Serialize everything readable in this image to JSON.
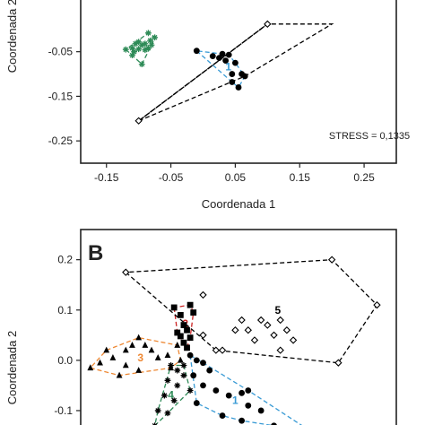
{
  "chart_data": [
    {
      "type": "scatter",
      "panel_label": "",
      "xlabel": "Coordenada 1",
      "ylabel": "Coordenada 2",
      "xlim": [
        -0.19,
        0.3
      ],
      "ylim": [
        -0.3,
        0.07
      ],
      "xticks": [
        "-0.15",
        "-0.05",
        "0.05",
        "0.15",
        "0.25"
      ],
      "yticks": [
        "-0.05",
        "-0.15",
        "-0.25"
      ],
      "annotation": "STRESS = 0,1335",
      "groups": [
        {
          "marker": "asterisk",
          "color": "#2e8b57",
          "hull_color": "#2e8b57",
          "points": [
            [
              -0.12,
              -0.045
            ],
            [
              -0.11,
              -0.042
            ],
            [
              -0.105,
              -0.032
            ],
            [
              -0.1,
              -0.028
            ],
            [
              -0.095,
              -0.035
            ],
            [
              -0.09,
              -0.032
            ],
            [
              -0.085,
              -0.042
            ],
            [
              -0.08,
              -0.035
            ],
            [
              -0.082,
              -0.025
            ],
            [
              -0.09,
              -0.046
            ],
            [
              -0.1,
              -0.044
            ],
            [
              -0.107,
              -0.05
            ],
            [
              -0.11,
              -0.058
            ],
            [
              -0.085,
              -0.008
            ],
            [
              -0.075,
              -0.018
            ],
            [
              -0.095,
              -0.078
            ]
          ]
        },
        {
          "marker": "circle",
          "color": "#000000",
          "hull_color": "#3a9bd5",
          "hull_label": "1",
          "points": [
            [
              -0.01,
              -0.048
            ],
            [
              0.015,
              -0.06
            ],
            [
              0.025,
              -0.064
            ],
            [
              0.03,
              -0.055
            ],
            [
              0.04,
              -0.057
            ],
            [
              0.035,
              -0.07
            ],
            [
              0.05,
              -0.075
            ],
            [
              0.045,
              -0.1
            ],
            [
              0.06,
              -0.1
            ],
            [
              0.065,
              -0.105
            ],
            [
              0.045,
              -0.118
            ],
            [
              0.055,
              -0.13
            ]
          ]
        },
        {
          "marker": "diamond",
          "color": "#000000",
          "hull_color": "#000000",
          "points": [
            [
              0.1,
              0.012
            ],
            [
              -0.1,
              -0.205
            ]
          ]
        }
      ],
      "extra_hulls": [
        {
          "color": "#000000",
          "points": [
            [
              -0.1,
              -0.205
            ],
            [
              0.1,
              0.012
            ],
            [
              0.2,
              0.012
            ],
            [
              0.065,
              -0.105
            ]
          ]
        }
      ]
    },
    {
      "type": "scatter",
      "panel_label": "B",
      "xlabel": "",
      "ylabel": "Coordenada 2",
      "xlim": [
        -0.19,
        0.3
      ],
      "ylim": [
        -0.15,
        0.26
      ],
      "yticks": [
        "0.2",
        "0.1",
        "0.0",
        "-0.1"
      ],
      "groups": [
        {
          "marker": "circle",
          "color": "#000000",
          "hull_color": "#3a9bd5",
          "hull_label": "1",
          "points": [
            [
              -0.02,
              0.01
            ],
            [
              -0.01,
              0.0
            ],
            [
              0.0,
              -0.005
            ],
            [
              0.01,
              -0.02
            ],
            [
              -0.015,
              -0.03
            ],
            [
              0.0,
              -0.05
            ],
            [
              0.02,
              -0.06
            ],
            [
              0.04,
              -0.07
            ],
            [
              0.06,
              -0.065
            ],
            [
              0.07,
              -0.06
            ],
            [
              0.07,
              -0.09
            ],
            [
              0.03,
              -0.11
            ],
            [
              0.06,
              -0.12
            ],
            [
              0.09,
              -0.1
            ],
            [
              0.11,
              -0.13
            ],
            [
              0.16,
              -0.135
            ],
            [
              -0.01,
              -0.085
            ]
          ]
        },
        {
          "marker": "square",
          "color": "#000000",
          "hull_color": "#cc2222",
          "hull_label": "2",
          "points": [
            [
              -0.045,
              0.105
            ],
            [
              -0.035,
              0.09
            ],
            [
              -0.03,
              0.07
            ],
            [
              -0.025,
              0.06
            ],
            [
              -0.035,
              0.048
            ],
            [
              -0.04,
              0.055
            ],
            [
              -0.03,
              0.035
            ],
            [
              -0.025,
              0.025
            ],
            [
              -0.02,
              0.045
            ],
            [
              -0.015,
              0.095
            ],
            [
              -0.02,
              0.11
            ]
          ]
        },
        {
          "marker": "triangle",
          "color": "#000000",
          "hull_color": "#ee8833",
          "hull_label": "3",
          "points": [
            [
              -0.175,
              -0.015
            ],
            [
              -0.16,
              -0.005
            ],
            [
              -0.15,
              0.02
            ],
            [
              -0.14,
              0.005
            ],
            [
              -0.12,
              0.02
            ],
            [
              -0.11,
              0.03
            ],
            [
              -0.1,
              0.045
            ],
            [
              -0.09,
              0.03
            ],
            [
              -0.08,
              0.02
            ],
            [
              -0.07,
              0.005
            ],
            [
              -0.055,
              0.01
            ],
            [
              -0.04,
              0.03
            ],
            [
              -0.035,
              0.0
            ],
            [
              -0.05,
              -0.015
            ],
            [
              -0.12,
              -0.01
            ],
            [
              -0.13,
              -0.03
            ],
            [
              -0.1,
              -0.02
            ]
          ]
        },
        {
          "marker": "asterisk",
          "color": "#000000",
          "hull_color": "#2e8b57",
          "hull_label": "4",
          "points": [
            [
              -0.05,
              -0.01
            ],
            [
              -0.04,
              -0.02
            ],
            [
              -0.03,
              -0.03
            ],
            [
              -0.055,
              -0.04
            ],
            [
              -0.04,
              -0.05
            ],
            [
              -0.02,
              -0.06
            ],
            [
              -0.06,
              -0.07
            ],
            [
              -0.045,
              -0.08
            ],
            [
              -0.07,
              -0.1
            ],
            [
              -0.055,
              -0.105
            ],
            [
              -0.075,
              -0.13
            ],
            [
              -0.03,
              -0.01
            ]
          ]
        },
        {
          "marker": "diamond",
          "color": "#000000",
          "hull_color": "#000000",
          "hull_label": "5",
          "points": [
            [
              -0.12,
              0.175
            ],
            [
              0.0,
              0.13
            ],
            [
              0.0,
              0.05
            ],
            [
              0.02,
              0.02
            ],
            [
              0.05,
              0.06
            ],
            [
              0.06,
              0.08
            ],
            [
              0.07,
              0.06
            ],
            [
              0.08,
              0.04
            ],
            [
              0.09,
              0.08
            ],
            [
              0.1,
              0.07
            ],
            [
              0.11,
              0.05
            ],
            [
              0.12,
              0.08
            ],
            [
              0.13,
              0.06
            ],
            [
              0.14,
              0.04
            ],
            [
              0.2,
              0.2
            ],
            [
              0.27,
              0.11
            ],
            [
              0.21,
              -0.005
            ],
            [
              0.12,
              0.02
            ],
            [
              0.03,
              0.02
            ]
          ]
        }
      ]
    }
  ]
}
